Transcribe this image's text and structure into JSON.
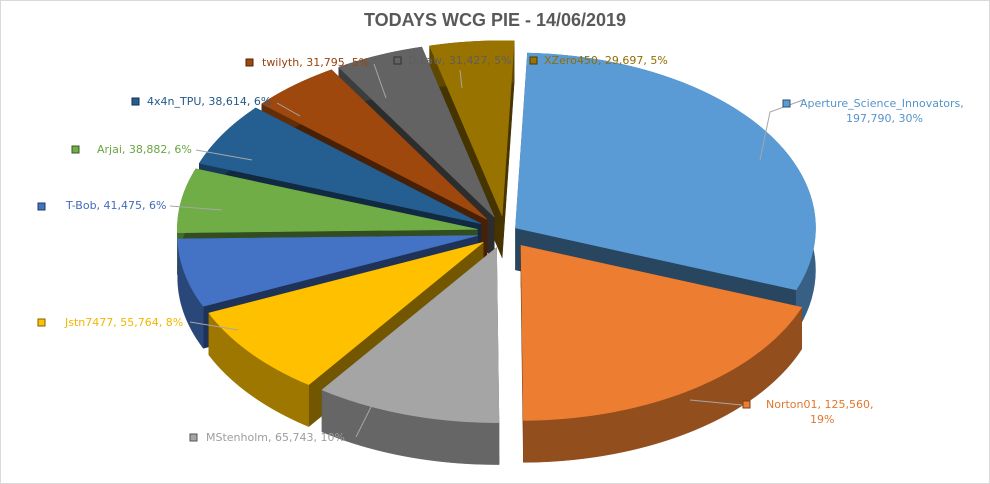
{
  "chart_data": {
    "type": "pie",
    "title": "TODAYS WCG PIE - 14/06/2019",
    "legend": "none",
    "slices": [
      {
        "name": "Aperture_Science_Innovators",
        "value": 197790,
        "percent": "30%",
        "label_line1": "Aperture_Science_Innovators,",
        "label_line2": "197,790, 30%",
        "color": "#5b9bd5"
      },
      {
        "name": "Norton01",
        "value": 125560,
        "percent": "19%",
        "label_line1": "Norton01, 125,560,",
        "label_line2": "19%",
        "color": "#ed7d31"
      },
      {
        "name": "MStenholm",
        "value": 65743,
        "percent": "10%",
        "label_line1": "MStenholm, 65,743, 10%",
        "label_line2": "",
        "color": "#a5a5a5"
      },
      {
        "name": "Jstn7477",
        "value": 55764,
        "percent": "8%",
        "label_line1": "Jstn7477, 55,764, 8%",
        "label_line2": "",
        "color": "#ffc000"
      },
      {
        "name": "T-Bob",
        "value": 41475,
        "percent": "6%",
        "label_line1": "T-Bob, 41,475, 6%",
        "label_line2": "",
        "color": "#4472c4"
      },
      {
        "name": "Arjai",
        "value": 38882,
        "percent": "6%",
        "label_line1": "Arjai, 38,882, 6%",
        "label_line2": "",
        "color": "#70ad47"
      },
      {
        "name": "4x4n_TPU",
        "value": 38614,
        "percent": "6%",
        "label_line1": "4x4n_TPU, 38,614, 6%",
        "label_line2": "",
        "color": "#255e91"
      },
      {
        "name": "twilyth",
        "value": 31795,
        "percent": "5%",
        "label_line1": "twilyth, 31,795, 5%",
        "label_line2": "",
        "color": "#9e480e"
      },
      {
        "name": "D.Law",
        "value": 31427,
        "percent": "5%",
        "label_line1": "D.Law, 31,427, 5%",
        "label_line2": "",
        "color": "#636363"
      },
      {
        "name": "XZero450",
        "value": 29697,
        "percent": "5%",
        "label_line1": "XZero450, 29,697, 5%",
        "label_line2": "",
        "color": "#997300"
      }
    ]
  }
}
